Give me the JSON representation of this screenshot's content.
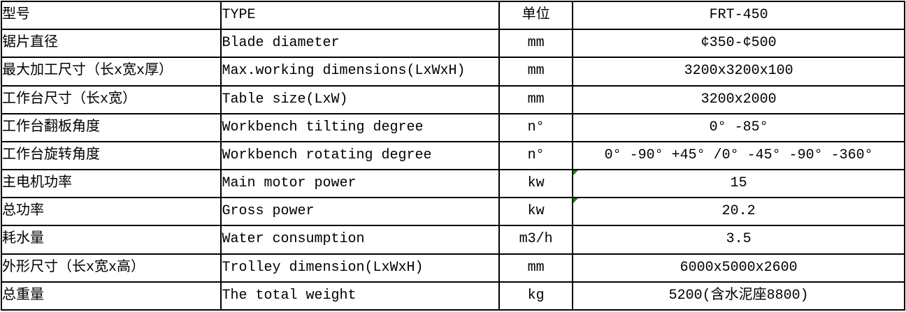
{
  "colors": {
    "border": "#000000",
    "text": "#000000",
    "background": "#ffffff",
    "flag_green": "#118811"
  },
  "table": {
    "rows": [
      {
        "cn": "型号",
        "en": "TYPE",
        "unit": "单位",
        "value": "FRT-450",
        "flag": false
      },
      {
        "cn": "锯片直径",
        "en": "Blade diameter",
        "unit": "mm",
        "value": "¢350-¢500",
        "flag": false
      },
      {
        "cn": "最大加工尺寸（长x宽x厚）",
        "en": "Max.working dimensions(LxWxH)",
        "unit": "mm",
        "value": "3200x3200x100",
        "flag": false
      },
      {
        "cn": "工作台尺寸（长x宽）",
        "en": "Table size(LxW)",
        "unit": "mm",
        "value": "3200x2000",
        "flag": false
      },
      {
        "cn": "工作台翻板角度",
        "en": "Workbench tilting degree",
        "unit": "n°",
        "value": "0° -85°",
        "flag": false
      },
      {
        "cn": "工作台旋转角度",
        "en": "Workbench rotating degree",
        "unit": "n°",
        "value": "0° -90° +45° /0° -45° -90° -360°",
        "flag": false
      },
      {
        "cn": "主电机功率",
        "en": "Main motor power",
        "unit": "kw",
        "value": "15",
        "flag": true
      },
      {
        "cn": "总功率",
        "en": "Gross power",
        "unit": "kw",
        "value": "20.2",
        "flag": true
      },
      {
        "cn": "耗水量",
        "en": "Water consumption",
        "unit": "m3/h",
        "value": "3.5",
        "flag": false
      },
      {
        "cn": "外形尺寸（长x宽x高）",
        "en": "Trolley dimension(LxWxH)",
        "unit": "mm",
        "value": "6000x5000x2600",
        "flag": false
      },
      {
        "cn": "总重量",
        "en": "The total weight",
        "unit": "kg",
        "value": "5200(含水泥座8800)",
        "flag": false
      }
    ]
  }
}
